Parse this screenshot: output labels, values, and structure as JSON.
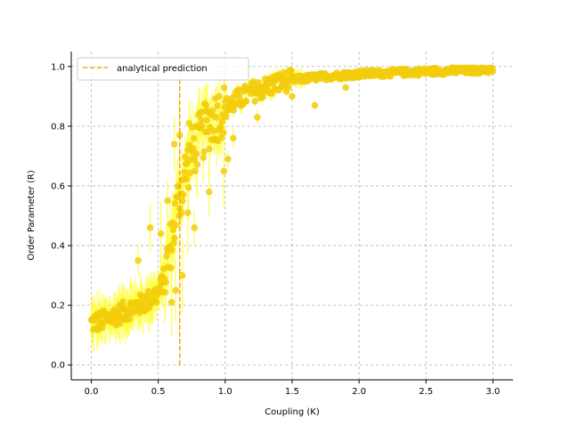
{
  "chart_data": {
    "type": "scatter",
    "title": "",
    "xlabel": "Coupling (K)",
    "ylabel": "Order Parameter (R)",
    "xlim": [
      -0.15,
      3.15
    ],
    "ylim": [
      -0.05,
      1.05
    ],
    "xticks": [
      0.0,
      0.5,
      1.0,
      1.5,
      2.0,
      2.5,
      3.0
    ],
    "xtick_labels": [
      "0.0",
      "0.5",
      "1.0",
      "1.5",
      "2.0",
      "2.5",
      "3.0"
    ],
    "yticks": [
      0.0,
      0.2,
      0.4,
      0.6,
      0.8,
      1.0
    ],
    "ytick_labels": [
      "0.0",
      "0.2",
      "0.4",
      "0.6",
      "0.8",
      "1.0"
    ],
    "grid": true,
    "legend_position": "top-left",
    "colors": {
      "points": "#f2cc0c",
      "errorbars": "#ffff33",
      "prediction": "#ffa500"
    },
    "prediction": {
      "label": "analytical prediction",
      "x": 0.66,
      "y_range": [
        0.0,
        0.97
      ],
      "style": "dashed"
    },
    "trend_points": [
      [
        0.0,
        0.14
      ],
      [
        0.1,
        0.15
      ],
      [
        0.2,
        0.17
      ],
      [
        0.3,
        0.19
      ],
      [
        0.4,
        0.21
      ],
      [
        0.5,
        0.24
      ],
      [
        0.55,
        0.3
      ],
      [
        0.6,
        0.42
      ],
      [
        0.65,
        0.55
      ],
      [
        0.7,
        0.64
      ],
      [
        0.75,
        0.71
      ],
      [
        0.8,
        0.75
      ],
      [
        0.85,
        0.79
      ],
      [
        0.9,
        0.82
      ],
      [
        1.0,
        0.86
      ],
      [
        1.1,
        0.89
      ],
      [
        1.2,
        0.915
      ],
      [
        1.3,
        0.93
      ],
      [
        1.4,
        0.945
      ],
      [
        1.5,
        0.955
      ],
      [
        1.7,
        0.965
      ],
      [
        2.0,
        0.975
      ],
      [
        2.5,
        0.983
      ],
      [
        3.0,
        0.99
      ]
    ],
    "n_points": 600,
    "outliers": [
      [
        0.44,
        0.46
      ],
      [
        0.35,
        0.35
      ],
      [
        0.52,
        0.44
      ],
      [
        0.57,
        0.55
      ],
      [
        0.6,
        0.21
      ],
      [
        0.63,
        0.25
      ],
      [
        0.68,
        0.3
      ],
      [
        0.72,
        0.51
      ],
      [
        0.77,
        0.46
      ],
      [
        0.88,
        0.58
      ],
      [
        0.62,
        0.74
      ],
      [
        0.66,
        0.77
      ],
      [
        0.73,
        0.81
      ],
      [
        0.99,
        0.65
      ],
      [
        1.02,
        0.69
      ],
      [
        1.06,
        0.76
      ],
      [
        1.24,
        0.83
      ],
      [
        1.5,
        0.9
      ],
      [
        1.67,
        0.87
      ],
      [
        1.9,
        0.93
      ]
    ]
  }
}
